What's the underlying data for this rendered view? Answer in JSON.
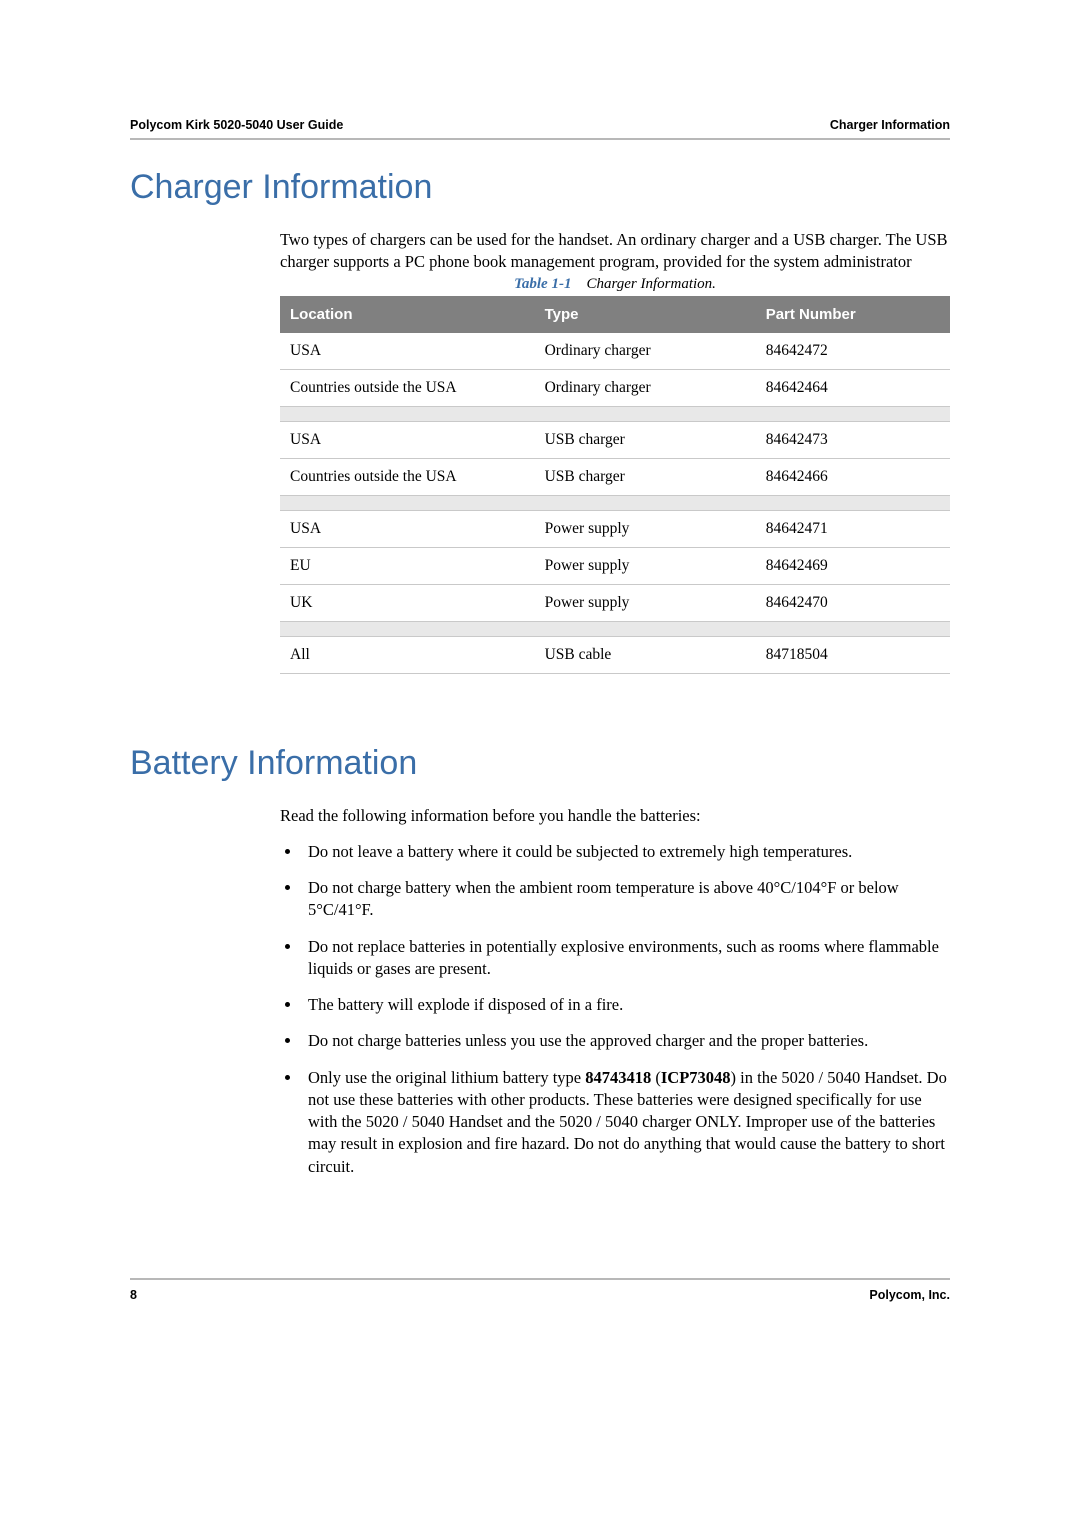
{
  "header": {
    "left": "Polycom Kirk 5020-5040 User Guide",
    "right": "Charger Information"
  },
  "section1": {
    "title": "Charger Information",
    "intro": "Two types of chargers can be used for the handset. An ordinary charger and a USB charger. The USB charger supports a PC phone book management program, provided for the system administrator",
    "table_caption_label": "Table 1-1",
    "table_caption_text": "Charger Information.",
    "columns": {
      "loc": "Location",
      "type": "Type",
      "part": "Part Number"
    },
    "rows": [
      {
        "loc": "USA",
        "type": "Ordinary charger",
        "part": "84642472"
      },
      {
        "loc": "Countries outside the USA",
        "type": "Ordinary charger",
        "part": "84642464"
      },
      {
        "sep": true
      },
      {
        "loc": "USA",
        "type": "USB charger",
        "part": "84642473"
      },
      {
        "loc": "Countries outside the USA",
        "type": "USB charger",
        "part": "84642466"
      },
      {
        "sep": true
      },
      {
        "loc": "USA",
        "type": "Power supply",
        "part": "84642471"
      },
      {
        "loc": "EU",
        "type": "Power supply",
        "part": "84642469"
      },
      {
        "loc": "UK",
        "type": "Power supply",
        "part": "84642470"
      },
      {
        "sep": true
      },
      {
        "loc": "All",
        "type": "USB cable",
        "part": "84718504"
      }
    ]
  },
  "section2": {
    "title": "Battery Information",
    "intro": "Read the following information before you handle the batteries:",
    "bullets": [
      "Do not leave a battery where it could be subjected to extremely high temperatures.",
      "Do not charge battery when the ambient room temperature is above 40°C/104°F or below 5°C/41°F.",
      "Do not replace batteries in potentially explosive environments, such as rooms where flammable liquids or gases are present.",
      "The battery will explode if disposed of in a fire.",
      "Do not charge batteries unless you use the approved charger and the proper batteries.",
      "Only use the original lithium battery type 84743418 (ICP73048) in the 5020 / 5040 Handset. Do not use these batteries with other products. These batteries were designed specifically for use with the 5020 / 5040 Handset and the 5020 / 5040 charger ONLY. Improper use of the batteries may result in explosion and fire hazard. Do not do anything that would cause the battery to short circuit."
    ]
  },
  "footer": {
    "page": "8",
    "right": "Polycom, Inc."
  },
  "style": {
    "heading_color": "#3a6ea8",
    "table_header_bg": "#808080",
    "table_header_fg": "#ffffff",
    "table_sep_bg": "#e8e8e8",
    "rule_color": "#b8b8b8"
  }
}
